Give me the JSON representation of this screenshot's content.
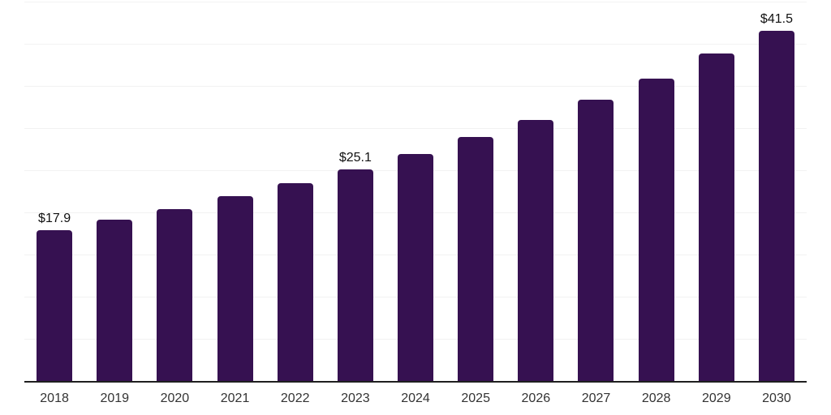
{
  "chart_data": {
    "type": "bar",
    "title": "",
    "xlabel": "",
    "ylabel": "",
    "categories": [
      "2018",
      "2019",
      "2020",
      "2021",
      "2022",
      "2023",
      "2024",
      "2025",
      "2026",
      "2027",
      "2028",
      "2029",
      "2030"
    ],
    "values": [
      17.9,
      19.1,
      20.4,
      21.9,
      23.5,
      25.1,
      26.9,
      28.9,
      31.0,
      33.4,
      35.9,
      38.8,
      41.5
    ],
    "value_labels": {
      "2018": "$17.9",
      "2023": "$25.1",
      "2030": "$41.5"
    },
    "ylim": [
      0,
      45
    ],
    "gridline_step": 5,
    "grid": "horizontal-only",
    "legend": "none",
    "colors": {
      "bar": "#361151",
      "gridline": "#f2f2f2",
      "axis_line": "#1f1f1f",
      "tick_label": "#333333",
      "value_label": "#111111",
      "background": "#ffffff"
    }
  }
}
